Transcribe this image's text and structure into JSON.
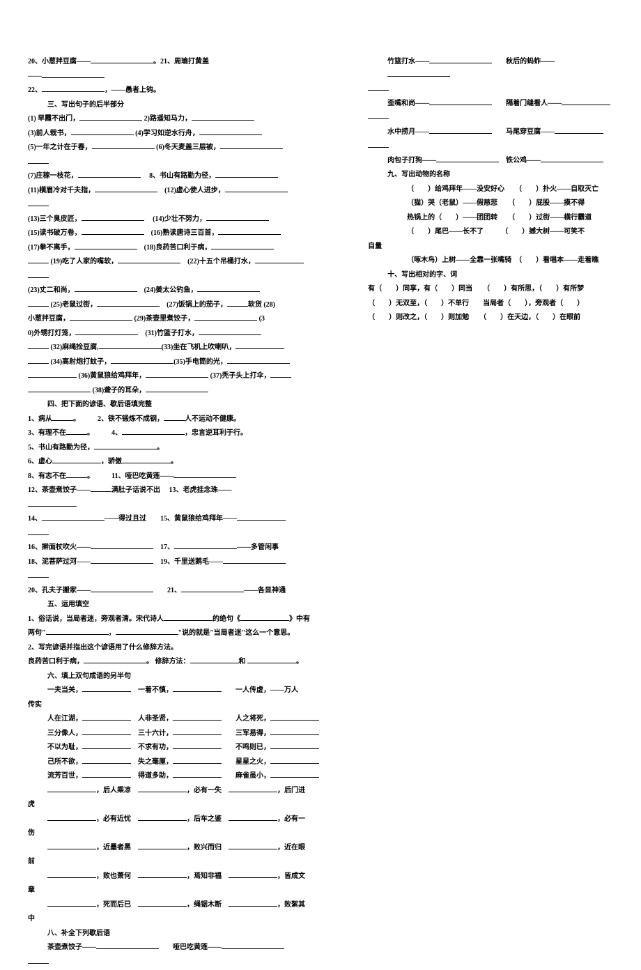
{
  "col_left": {
    "q20": "20、小葱拌豆腐——",
    "q21": "。21、周瑜打黄盖",
    "q22": "22、",
    "q22b": "，——愚者上钩。",
    "sec3_title": "三、写出句子的后半部分",
    "p1": "(1) 早霞不出门，",
    "p2": "2)路遥知马力，",
    "p3": "(3)前人栽书，",
    "p4": "(4)学习如逆水行舟，",
    "p5": "(5)一年之计在于春，",
    "p6": "(6)冬天麦盖三层被，",
    "p7": "(7)庄稼一枝花，",
    "p8": "8、书山有路勤为径，",
    "p11": "(11)横眉冷对千夫指，",
    "p12": "(12)虚心使人进步，",
    "p13": "(13)三个臭皮匠，",
    "p14": "(14)少壮不努力，",
    "p15": "(15)读书破万卷，",
    "p16": "(16)熟读唐诗三百首，",
    "p17": "(17)拳不离手，",
    "p18": "(18)良药苦口利于病，",
    "p19": "(19)吃了人家的嘴软，",
    "p22": "(22)十五个吊桶打水，",
    "p23": "(23)丈二和尚，",
    "p24": "(24)姜太公钓鱼，",
    "p25": "(25)老鼠过街，",
    "p27": "(27)饭锅上的茄子，",
    "p27b": "软货 (28)",
    "p28": "小葱拌豆腐，",
    "p29": "(29)茶壶里煮饺子，",
    "p30": "(3",
    "p30b": "0)外甥打灯笼，",
    "p31": "(31)竹篮子打水，",
    "p32": "(32)麻绳捡豆腐,",
    "p33": "(33)坐在飞机上吹喇叭，",
    "p34": "(34)高射炮打蚊子，",
    "p35": "(35)手电筒的光，",
    "p36": "(36)黄鼠狼给鸡拜年，",
    "p37": "(37)秃子头上打伞，",
    "p38": "(38)聋子的耳朵，",
    "sec4_title": "四、把下面的谚语、歇后语填完整",
    "s4_1": "1、病从",
    "s4_2": "2、铁不锻炼不成钢，",
    "s4_2b": "人不运动不健康。",
    "s4_3": "3、有理不在",
    "s4_4": "4、",
    "s4_4b": "，忠言逆耳利于行。",
    "s4_5": "5、书山有路勤为径，",
    "s4_6": "6、虚心",
    "s4_6b": "，骄傲",
    "s4_8": "8、有志不在",
    "s4_11": "11、哑巴吃黄莲——",
    "s4_12": "12、茶壶煮饺子——",
    "s4_12b": "满肚子话说不出",
    "s4_13": "13、老虎挂念珠——",
    "s4_14": "14、",
    "s4_14b": "——得过且过",
    "s4_15": "15、黄鼠狼给鸡拜年——",
    "s4_16": "16、擀面杖吹火——",
    "s4_17": "17、",
    "s4_17b": "——多管闲事",
    "s4_18": "18、泥菩萨过河——",
    "s4_19": "19、千里送鹅毛——",
    "s4_20": "20、孔夫子搬家——",
    "s4_21": "21、",
    "s4_21b": "——各显神通",
    "sec5_title": "五、运用填空",
    "s5_1a": "1、俗话说，当局者迷，旁观者清。宋代诗人",
    "s5_1b": "的绝句《",
    "s5_1c": "》中有",
    "s5_1d": "两句\"",
    "s5_1e": "，",
    "s5_1f": "\"说的就是\"当局者迷\"这么一个意思。",
    "s5_2a": "2、写完谚语并指出这个谚语用了什么修辞方法。",
    "s5_2b": "良药苦口利于病，",
    "s5_2c": "。  修辞方法：",
    "s5_2d": "和",
    "s5_2e": "。",
    "sec6_title": "六、填上双句成语的另半句",
    "r1a": "一夫当关，",
    "r1b": "一着不慎，",
    "r1c": "一人传虚，——万人",
    "r_chuan": "传实",
    "r2a": "人在江湖，",
    "r2b": "人非圣贤，",
    "r2c": "人之将死，",
    "r3a": "三分像人，",
    "r3b": "三十六计，",
    "r3c": "三军易得，",
    "r4a": "不以为耻，",
    "r4b": "不求有功，",
    "r4c": "不鸣则已，",
    "r5a": "己所不欲，",
    "r5b": "失之毫厘，",
    "r5c": "星星之火，",
    "r6a": "流芳百世，",
    "r6b": "得道多助，",
    "r6c": "麻雀虽小，",
    "r7a": "，后人乘凉",
    "r7b": "，必有一失",
    "r7c": "，后门进",
    "r_hu": "虎",
    "r8a": "，必有近忧",
    "r8b": "，后车之鉴",
    "r8c": "，必有一",
    "r_shang": "伤",
    "r9a": "，近墨者黑",
    "r9b": "，败兴而归",
    "r9c": "，近在眼",
    "r_qian": "前",
    "r10a": "，败也萧何",
    "r10b": "，焉知非福",
    "r10c": "，皆成文",
    "r_zhang": "章",
    "r11a": "，死而后已",
    "r11b": "，绳锯木断",
    "r11c": "，败絮其",
    "r_zhong": "中",
    "sec8_title": "八、补全下列歇后语",
    "s8_1": "茶壶煮饺子——",
    "s8_2": "哑巴吃黄莲——"
  },
  "col_right": {
    "r1a": "竹篮打水——",
    "r1b": "秋后的蚂蚱——",
    "r2a": "歪嘴和尚——",
    "r2b": "隔着门缝看人——",
    "r3a": "水中捞月——",
    "r3b": "马尾穿豆腐——",
    "r4a": "肉包子打狗——",
    "r4b": "铁公鸡——",
    "sec9_title": "九、写出动物的名称",
    "a1a": "（　　）给鸡拜年——没安好心",
    "a1b": "（　　）扑火——自取灭亡",
    "a2a": "（猫）哭（老鼠）——假慈悲",
    "a2b": "（　　）屁股——摸不得",
    "a3a": "热锅上的（　　）——团团转",
    "a3b": "（　　）过街——横行霸道",
    "a4a": "（　　）尾巴——长不了",
    "a4b": "（　　）撼大树——可笑不",
    "a4c": "自量",
    "a5a": "（啄木鸟）上树——全靠一张嘴骑",
    "a5b": "（　　）看唱本——走着瞧",
    "sec10_title": "十、写出相对的字、词",
    "t1a": "有（　　）同享，有（　　）同当",
    "t1b": "（　　）有所思，（　　）有所梦",
    "t2a": "（　　）无双至，（　　）不单行",
    "t2b": "当局者（　　），旁观者（　　）",
    "t3a": "（　　）则改之，（　　）则加勉",
    "t3b": "（　　）在天边，（　　）在眼前"
  }
}
